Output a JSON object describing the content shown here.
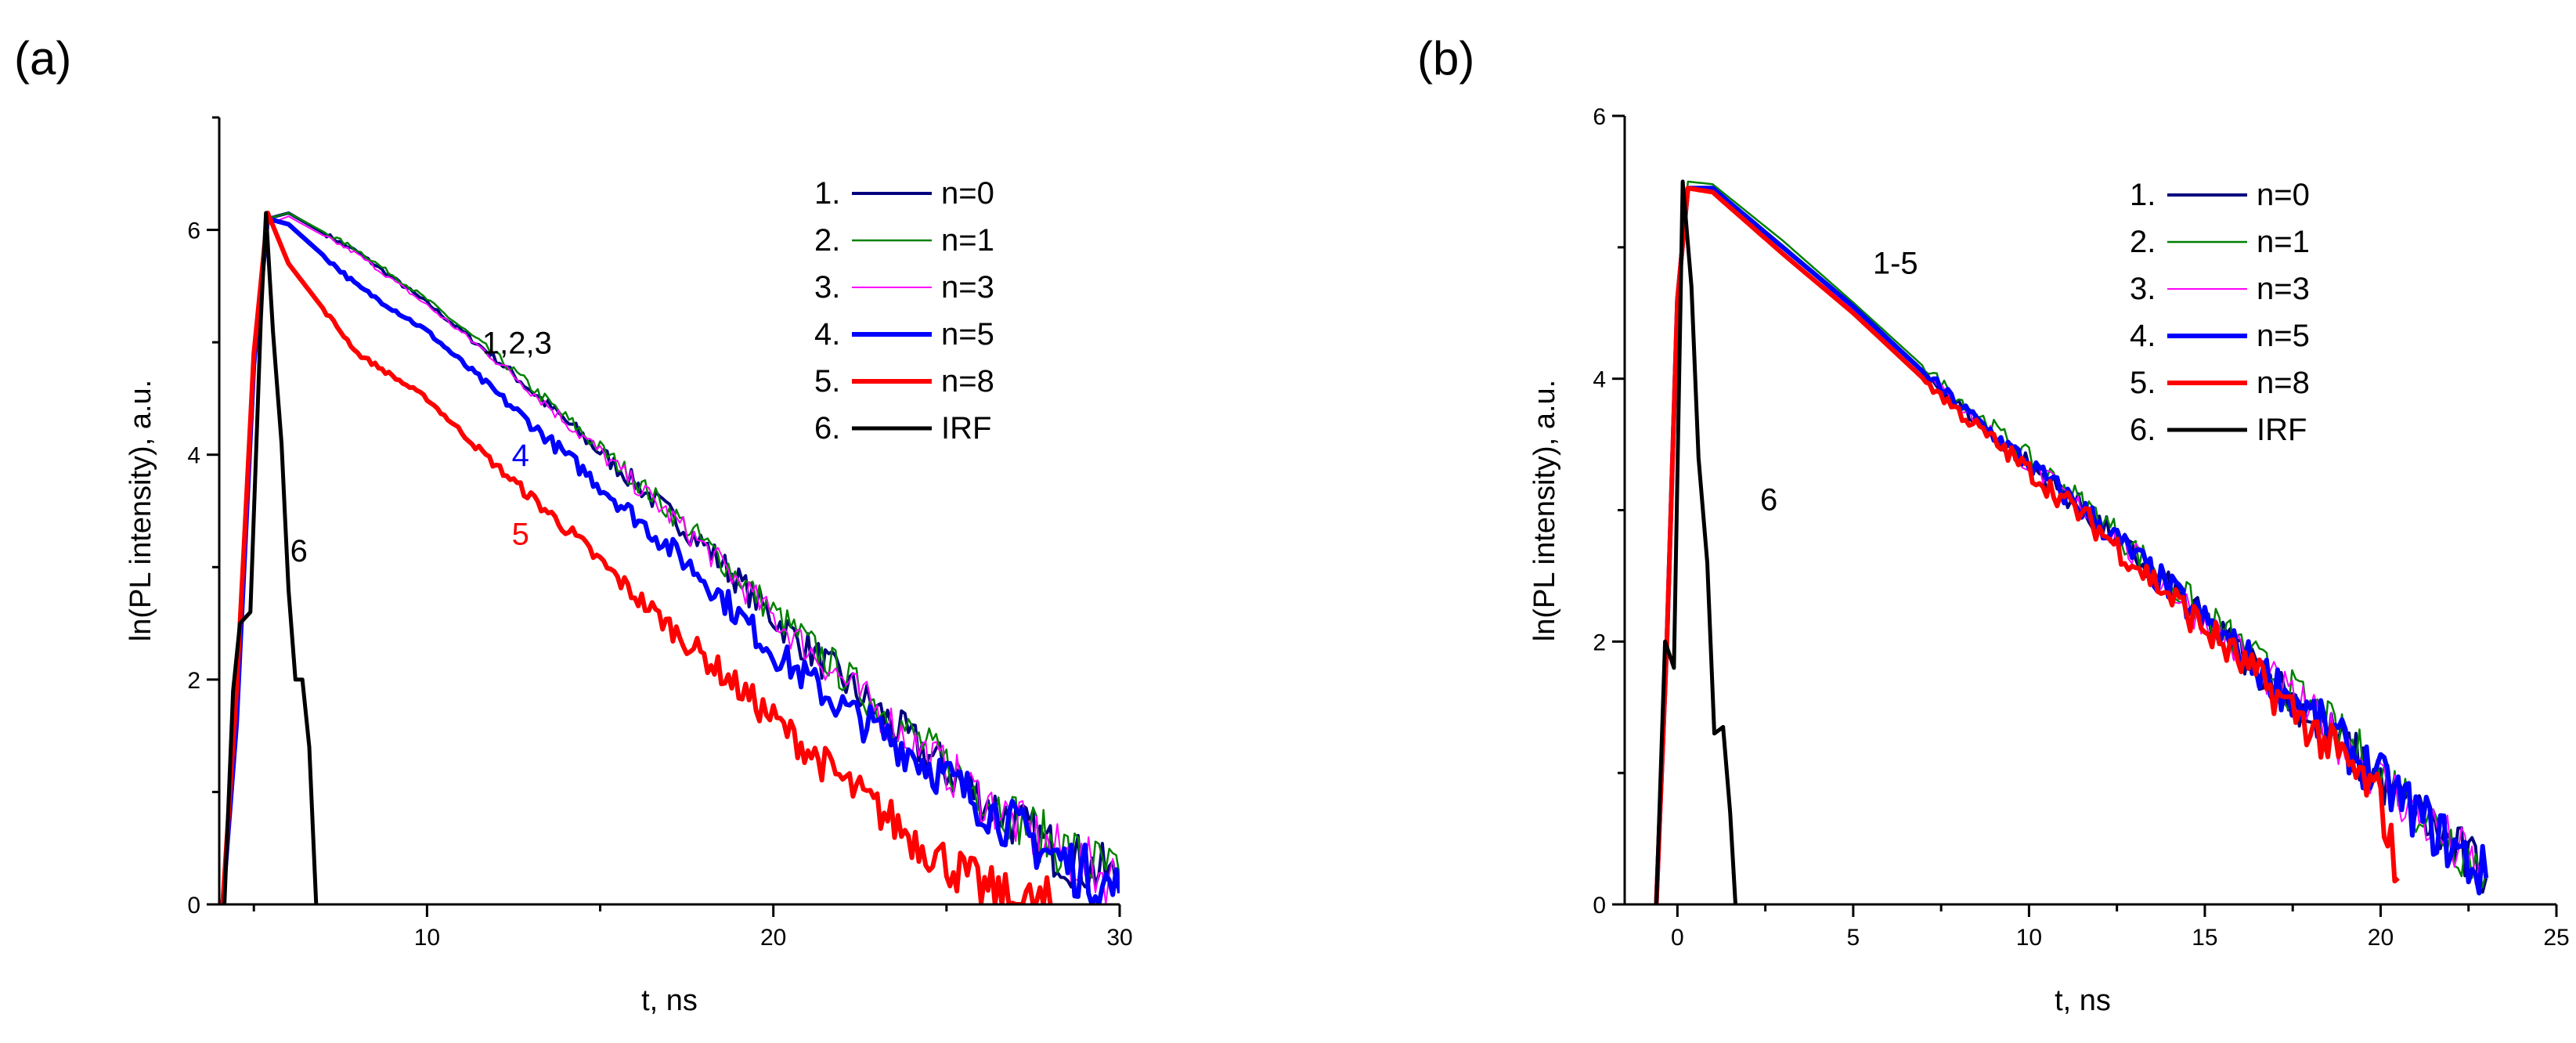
{
  "chart_data": [
    {
      "type": "line",
      "panel_label": "(a)",
      "xlabel": "t, ns",
      "ylabel": "ln(PL intensity), a.u.",
      "xlim": [
        4,
        30
      ],
      "ylim": [
        0,
        7
      ],
      "xticks": [
        10,
        20,
        30
      ],
      "yticks": [
        0,
        2,
        4,
        6
      ],
      "legend_position": "top-right",
      "legend": [
        {
          "number": "1.",
          "label": "n=0",
          "color": "#000080"
        },
        {
          "number": "2.",
          "label": "n=1",
          "color": "#008000"
        },
        {
          "number": "3.",
          "label": "n=3",
          "color": "#ff00ff"
        },
        {
          "number": "4.",
          "label": "n=5",
          "color": "#0000ff"
        },
        {
          "number": "5.",
          "label": "n=8",
          "color": "#ff0000"
        },
        {
          "number": "6.",
          "label": "IRF",
          "color": "#000000"
        }
      ],
      "series": [
        {
          "name": "n=0",
          "color": "#000080",
          "points": [
            [
              4.1,
              0
            ],
            [
              4.5,
              1.7
            ],
            [
              5.0,
              4.9
            ],
            [
              5.4,
              6.1
            ],
            [
              6.0,
              6.15
            ],
            [
              8.0,
              5.8
            ],
            [
              10,
              5.35
            ],
            [
              12,
              4.85
            ],
            [
              14,
              4.3
            ],
            [
              16,
              3.75
            ],
            [
              18,
              3.2
            ],
            [
              20,
              2.55
            ],
            [
              22,
              2.0
            ],
            [
              24,
              1.45
            ],
            [
              26,
              0.95
            ],
            [
              28,
              0.5
            ],
            [
              30,
              0.2
            ]
          ]
        },
        {
          "name": "n=1",
          "color": "#008000",
          "points": [
            [
              4.1,
              0
            ],
            [
              4.5,
              1.8
            ],
            [
              5.0,
              5.0
            ],
            [
              5.4,
              6.1
            ],
            [
              6.0,
              6.15
            ],
            [
              8.0,
              5.82
            ],
            [
              10,
              5.38
            ],
            [
              12,
              4.88
            ],
            [
              14,
              4.33
            ],
            [
              16,
              3.78
            ],
            [
              18,
              3.22
            ],
            [
              20,
              2.6
            ],
            [
              22,
              2.05
            ],
            [
              24,
              1.5
            ],
            [
              26,
              1.0
            ],
            [
              28,
              0.55
            ],
            [
              30,
              0.25
            ]
          ]
        },
        {
          "name": "n=3",
          "color": "#ff00ff",
          "points": [
            [
              4.1,
              0
            ],
            [
              4.5,
              1.6
            ],
            [
              5.0,
              4.8
            ],
            [
              5.4,
              6.05
            ],
            [
              6.0,
              6.12
            ],
            [
              8.0,
              5.78
            ],
            [
              10,
              5.33
            ],
            [
              12,
              4.84
            ],
            [
              14,
              4.3
            ],
            [
              16,
              3.74
            ],
            [
              18,
              3.18
            ],
            [
              20,
              2.55
            ],
            [
              22,
              2.0
            ],
            [
              24,
              1.45
            ],
            [
              26,
              0.95
            ],
            [
              28,
              0.5
            ],
            [
              30,
              0.2
            ]
          ]
        },
        {
          "name": "n=5",
          "color": "#0000ff",
          "points": [
            [
              4.1,
              0
            ],
            [
              4.5,
              1.6
            ],
            [
              5.0,
              4.8
            ],
            [
              5.4,
              6.1
            ],
            [
              6.0,
              6.05
            ],
            [
              8.0,
              5.5
            ],
            [
              10,
              5.1
            ],
            [
              12,
              4.55
            ],
            [
              14,
              4.0
            ],
            [
              16,
              3.45
            ],
            [
              18,
              2.9
            ],
            [
              20,
              2.25
            ],
            [
              22,
              1.75
            ],
            [
              24,
              1.35
            ],
            [
              26,
              0.9
            ],
            [
              28,
              0.45
            ],
            [
              30,
              0.1
            ]
          ]
        },
        {
          "name": "n=8",
          "color": "#ff0000",
          "points": [
            [
              4.1,
              0
            ],
            [
              4.5,
              1.9
            ],
            [
              5.0,
              4.9
            ],
            [
              5.4,
              6.15
            ],
            [
              6.0,
              5.7
            ],
            [
              8.0,
              4.9
            ],
            [
              10,
              4.5
            ],
            [
              12,
              3.9
            ],
            [
              14,
              3.35
            ],
            [
              16,
              2.75
            ],
            [
              18,
              2.2
            ],
            [
              20,
              1.65
            ],
            [
              22,
              1.1
            ],
            [
              24,
              0.6
            ],
            [
              26,
              0.15
            ],
            [
              27,
              0
            ],
            [
              28,
              0
            ]
          ]
        },
        {
          "name": "IRF",
          "color": "#000000",
          "points": [
            [
              4.15,
              0
            ],
            [
              4.4,
              1.9
            ],
            [
              4.6,
              2.5
            ],
            [
              4.9,
              2.6
            ],
            [
              5.2,
              5.2
            ],
            [
              5.35,
              6.15
            ],
            [
              5.55,
              5.1
            ],
            [
              5.8,
              4.1
            ],
            [
              6.0,
              2.8
            ],
            [
              6.2,
              2.0
            ],
            [
              6.4,
              2.0
            ],
            [
              6.6,
              1.4
            ],
            [
              6.8,
              0
            ]
          ]
        }
      ],
      "annotations": [
        {
          "text": "1,2,3",
          "x": 12.6,
          "y": 4.9,
          "color": "#000000"
        },
        {
          "text": "4",
          "x": 12.7,
          "y": 3.9,
          "color": "#0000ff"
        },
        {
          "text": "5",
          "x": 12.7,
          "y": 3.2,
          "color": "#ff0000"
        },
        {
          "text": "6",
          "x": 6.3,
          "y": 3.05,
          "color": "#000000"
        }
      ]
    },
    {
      "type": "line",
      "panel_label": "(b)",
      "xlabel": "t, ns",
      "ylabel": "ln(PL intensity), a.u.",
      "xlim": [
        -1.5,
        25
      ],
      "ylim": [
        0,
        6
      ],
      "xticks": [
        0,
        5,
        10,
        15,
        20,
        25
      ],
      "yticks": [
        0,
        2,
        4,
        6
      ],
      "legend_position": "top-right",
      "legend": [
        {
          "number": "1.",
          "label": "n=0",
          "color": "#000080"
        },
        {
          "number": "2.",
          "label": "n=1",
          "color": "#008000"
        },
        {
          "number": "3.",
          "label": "n=3",
          "color": "#ff00ff"
        },
        {
          "number": "4.",
          "label": "n=5",
          "color": "#0000ff"
        },
        {
          "number": "5.",
          "label": "n=8",
          "color": "#ff0000"
        },
        {
          "number": "6.",
          "label": "IRF",
          "color": "#000000"
        }
      ],
      "series": [
        {
          "name": "n=0",
          "color": "#000080",
          "points": [
            [
              -0.6,
              0
            ],
            [
              -0.3,
              2.0
            ],
            [
              0,
              4.6
            ],
            [
              0.3,
              5.45
            ],
            [
              1.0,
              5.45
            ],
            [
              3,
              5.0
            ],
            [
              5,
              4.55
            ],
            [
              8,
              3.8
            ],
            [
              10,
              3.35
            ],
            [
              12,
              2.9
            ],
            [
              15,
              2.15
            ],
            [
              18,
              1.45
            ],
            [
              20,
              0.95
            ],
            [
              22,
              0.45
            ],
            [
              23,
              0.2
            ]
          ]
        },
        {
          "name": "n=1",
          "color": "#008000",
          "points": [
            [
              -0.6,
              0
            ],
            [
              -0.3,
              2.0
            ],
            [
              0,
              4.7
            ],
            [
              0.3,
              5.5
            ],
            [
              1.0,
              5.48
            ],
            [
              3,
              5.05
            ],
            [
              5,
              4.58
            ],
            [
              8,
              3.85
            ],
            [
              10,
              3.4
            ],
            [
              12,
              2.95
            ],
            [
              15,
              2.2
            ],
            [
              18,
              1.5
            ],
            [
              20,
              1.0
            ],
            [
              22,
              0.5
            ],
            [
              23,
              0.25
            ]
          ]
        },
        {
          "name": "n=3",
          "color": "#ff00ff",
          "points": [
            [
              -0.6,
              0
            ],
            [
              -0.3,
              2.0
            ],
            [
              0,
              4.6
            ],
            [
              0.3,
              5.45
            ],
            [
              1.0,
              5.45
            ],
            [
              3,
              5.0
            ],
            [
              5,
              4.52
            ],
            [
              8,
              3.8
            ],
            [
              10,
              3.35
            ],
            [
              12,
              2.9
            ],
            [
              15,
              2.15
            ],
            [
              18,
              1.45
            ],
            [
              20,
              0.95
            ],
            [
              22,
              0.45
            ],
            [
              23,
              0.2
            ]
          ]
        },
        {
          "name": "n=5",
          "color": "#0000ff",
          "points": [
            [
              -0.6,
              0
            ],
            [
              -0.3,
              2.0
            ],
            [
              0,
              4.6
            ],
            [
              0.3,
              5.45
            ],
            [
              1.0,
              5.45
            ],
            [
              3,
              5.0
            ],
            [
              5,
              4.55
            ],
            [
              8,
              3.8
            ],
            [
              10,
              3.35
            ],
            [
              12,
              2.9
            ],
            [
              15,
              2.15
            ],
            [
              18,
              1.45
            ],
            [
              20,
              0.95
            ],
            [
              22,
              0.45
            ],
            [
              23,
              0.2
            ]
          ]
        },
        {
          "name": "n=8",
          "color": "#ff0000",
          "points": [
            [
              -0.6,
              0
            ],
            [
              -0.3,
              2.0
            ],
            [
              0,
              4.6
            ],
            [
              0.3,
              5.45
            ],
            [
              1.0,
              5.42
            ],
            [
              3,
              4.95
            ],
            [
              5,
              4.5
            ],
            [
              8,
              3.75
            ],
            [
              10,
              3.3
            ],
            [
              12,
              2.85
            ],
            [
              15,
              2.1
            ],
            [
              18,
              1.35
            ],
            [
              20,
              0.8
            ],
            [
              20.5,
              0.2
            ]
          ]
        },
        {
          "name": "IRF",
          "color": "#000000",
          "points": [
            [
              -0.6,
              0
            ],
            [
              -0.35,
              2.0
            ],
            [
              -0.1,
              1.8
            ],
            [
              0.15,
              5.5
            ],
            [
              0.4,
              4.7
            ],
            [
              0.6,
              3.4
            ],
            [
              0.85,
              2.6
            ],
            [
              1.05,
              1.3
            ],
            [
              1.3,
              1.35
            ],
            [
              1.5,
              0.7
            ],
            [
              1.65,
              0
            ]
          ]
        }
      ],
      "annotations": [
        {
          "text": "1-5",
          "x": 6.2,
          "y": 4.8,
          "color": "#000000"
        },
        {
          "text": "6",
          "x": 2.6,
          "y": 3.0,
          "color": "#000000"
        }
      ]
    }
  ]
}
